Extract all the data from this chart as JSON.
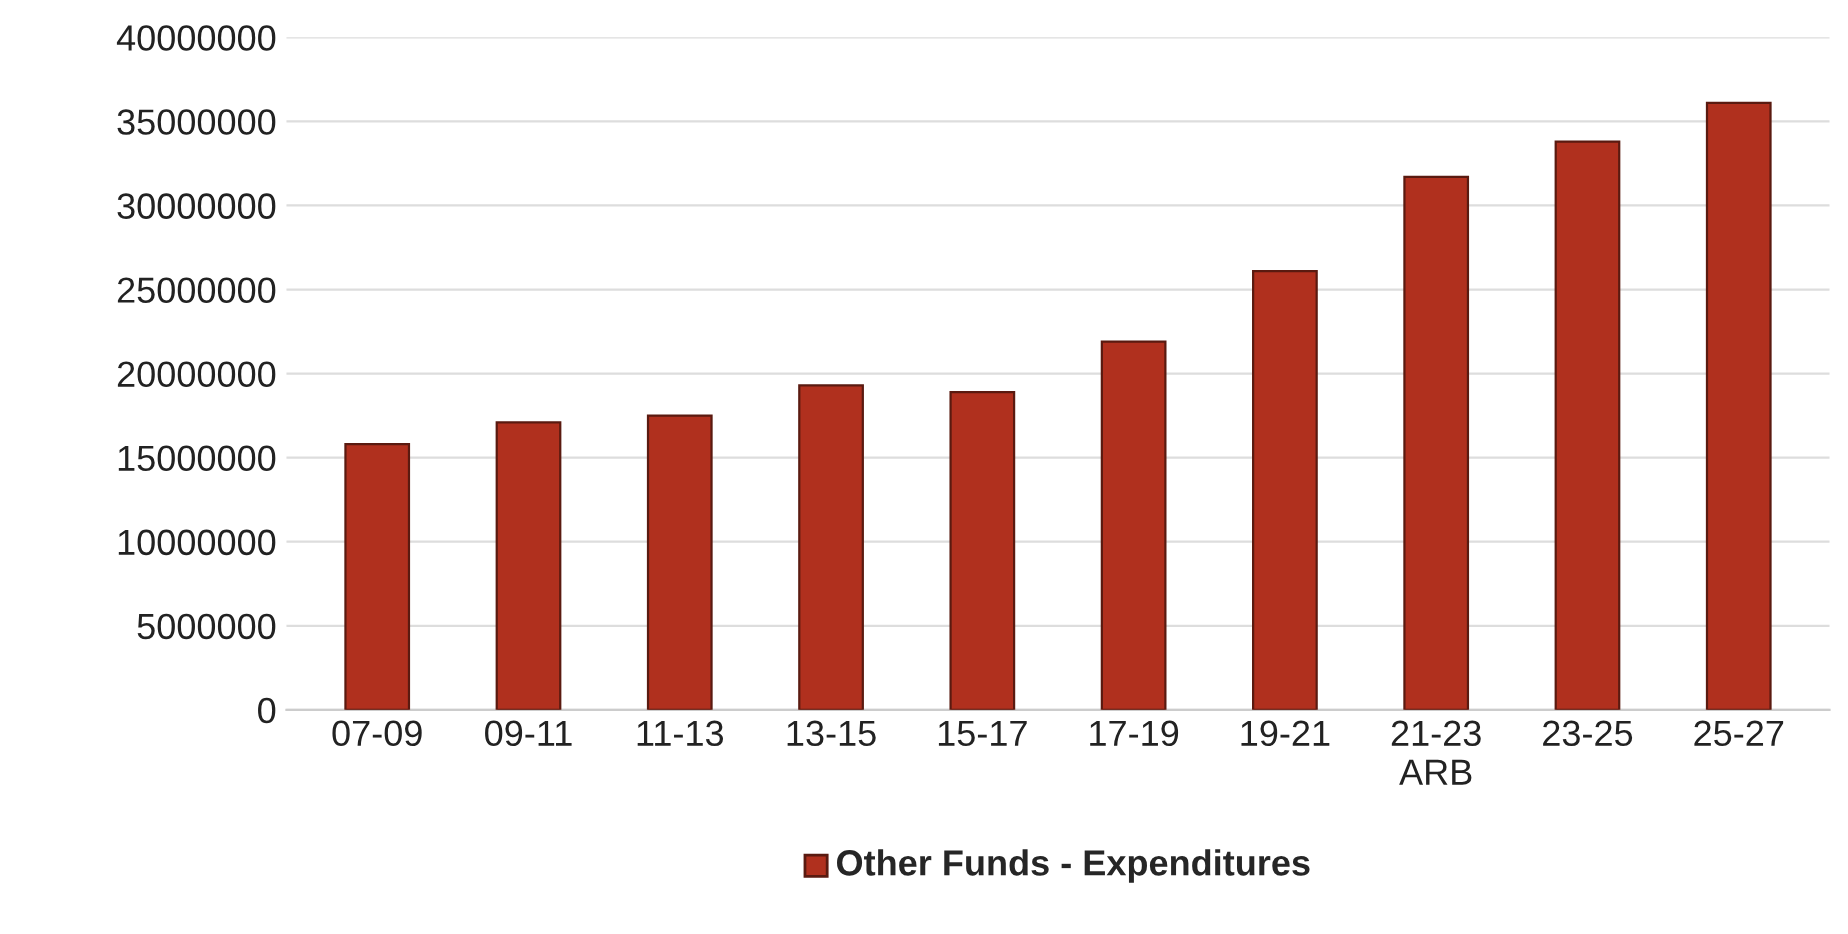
{
  "chart_data": {
    "type": "bar",
    "categories": [
      "07-09",
      "09-11",
      "11-13",
      "13-15",
      "15-17",
      "17-19",
      "19-21",
      "21-23\nARB",
      "23-25",
      "25-27"
    ],
    "series": [
      {
        "name": "Other Funds - Expenditures",
        "color": "#b0301e",
        "values": [
          15800000,
          17100000,
          17500000,
          19300000,
          18900000,
          21900000,
          26100000,
          31700000,
          33800000,
          36100000
        ]
      }
    ],
    "ylim": [
      0,
      40000000
    ],
    "yticks": [
      0,
      5000000,
      10000000,
      15000000,
      20000000,
      25000000,
      30000000,
      35000000,
      40000000
    ],
    "grid": "y",
    "legend": "bottom"
  }
}
